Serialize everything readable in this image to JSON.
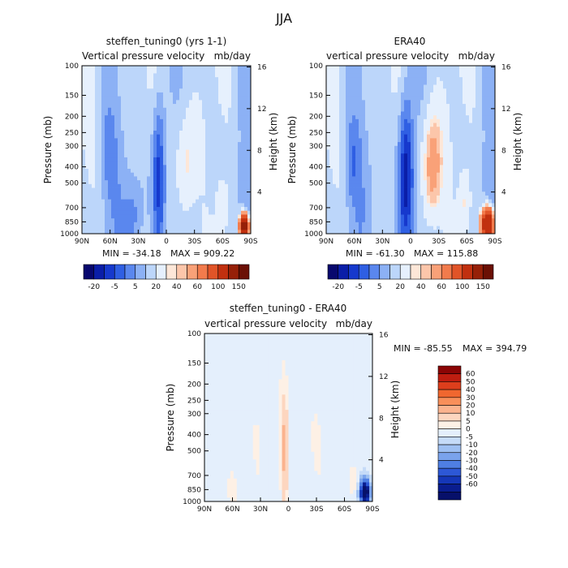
{
  "page_title": "JJA",
  "chart_data": [
    {
      "type": "heatmap",
      "title": "steffen_tuning0 (yrs 1-1)",
      "subtitle_left": "Vertical pressure velocity",
      "subtitle_right": "mb/day",
      "ylabel": "Pressure (mb)",
      "ylabel_right": "Height (km)",
      "x_ticks": [
        "90N",
        "60N",
        "30N",
        "0",
        "30S",
        "60S",
        "90S"
      ],
      "x_range": [
        90,
        -90
      ],
      "y_ticks": [
        100,
        150,
        200,
        250,
        300,
        400,
        500,
        700,
        850,
        1000
      ],
      "y_range": [
        1000,
        100
      ],
      "y_scale": "log",
      "height_ticks": [
        4,
        8,
        12,
        16
      ],
      "min_label": "MIN = -34.18",
      "max_label": "MAX = 909.22",
      "colorbar": {
        "orientation": "horizontal",
        "tick_labels": [
          "-20",
          "-5",
          "5",
          "20",
          "40",
          "60",
          "100",
          "150"
        ],
        "colors": [
          "#08086e",
          "#0a1ea8",
          "#1639cd",
          "#2f5fe3",
          "#5a87ee",
          "#8cb1f5",
          "#bcd6fa",
          "#e6f0fd",
          "#fde7d8",
          "#fcc6aa",
          "#f9a178",
          "#f27b4c",
          "#e15428",
          "#c1300f",
          "#962008",
          "#6b1005"
        ]
      },
      "features": [
        {
          "lat": 62,
          "p": 300,
          "w": 8,
          "h": 0.55,
          "v": -4,
          "note": "dark column"
        },
        {
          "lat": 35,
          "p": 800,
          "w": 10,
          "h": 0.5,
          "v": -6
        },
        {
          "lat": 8,
          "p": 450,
          "w": 7,
          "h": 1.1,
          "v": -14
        },
        {
          "lat": -20,
          "p": 420,
          "w": 12,
          "h": 0.9,
          "v": 10
        },
        {
          "lat": -60,
          "p": 700,
          "w": 7,
          "h": 0.4,
          "v": 6
        },
        {
          "lat": -83,
          "p": 900,
          "w": 4,
          "h": 0.14,
          "v": 90
        }
      ]
    },
    {
      "type": "heatmap",
      "title": "ERA40",
      "subtitle_left": "vertical pressure velocity",
      "subtitle_right": "mb/day",
      "ylabel": "Pressure (mb)",
      "ylabel_right": "Height (km)",
      "x_ticks": [
        "90N",
        "60N",
        "30N",
        "0",
        "30S",
        "60S",
        "90S"
      ],
      "x_range": [
        90,
        -90
      ],
      "y_ticks": [
        100,
        150,
        200,
        250,
        300,
        400,
        500,
        700,
        850,
        1000
      ],
      "y_range": [
        1000,
        100
      ],
      "y_scale": "log",
      "height_ticks": [
        4,
        8,
        12,
        16
      ],
      "min_label": "MIN = -61.30",
      "max_label": "MAX = 115.88",
      "colorbar": {
        "orientation": "horizontal",
        "tick_labels": [
          "-20",
          "-5",
          "5",
          "20",
          "40",
          "60",
          "100",
          "150"
        ],
        "colors": [
          "#08086e",
          "#0a1ea8",
          "#1639cd",
          "#2f5fe3",
          "#5a87ee",
          "#8cb1f5",
          "#bcd6fa",
          "#e6f0fd",
          "#fde7d8",
          "#fcc6aa",
          "#f9a178",
          "#f27b4c",
          "#e15428",
          "#c1300f",
          "#962008",
          "#6b1005"
        ]
      },
      "features": [
        {
          "lat": 62,
          "p": 350,
          "w": 8,
          "h": 0.55,
          "v": -5
        },
        {
          "lat": 5,
          "p": 450,
          "w": 8,
          "h": 1.1,
          "v": -18
        },
        {
          "lat": -22,
          "p": 420,
          "w": 12,
          "h": 0.9,
          "v": 14
        },
        {
          "lat": -58,
          "p": 650,
          "w": 7,
          "h": 0.45,
          "v": 6
        },
        {
          "lat": -82,
          "p": 880,
          "w": 6,
          "h": 0.2,
          "v": 60
        }
      ]
    },
    {
      "type": "heatmap",
      "title": "steffen_tuning0 - ERA40",
      "subtitle_left": "vertical pressure velocity",
      "subtitle_right": "mb/day",
      "ylabel": "Pressure (mb)",
      "ylabel_right": "Height (km)",
      "x_ticks": [
        "90N",
        "60N",
        "30N",
        "0",
        "30S",
        "60S",
        "90S"
      ],
      "x_range": [
        90,
        -90
      ],
      "y_ticks": [
        100,
        150,
        200,
        250,
        300,
        400,
        500,
        700,
        850,
        1000
      ],
      "y_range": [
        1000,
        100
      ],
      "y_scale": "log",
      "height_ticks": [
        4,
        8,
        12,
        16
      ],
      "min_label": "MIN = -85.55",
      "max_label": "MAX = 394.79",
      "colorbar": {
        "orientation": "vertical",
        "tick_labels": [
          "60",
          "50",
          "40",
          "30",
          "20",
          "10",
          "5",
          "0",
          "-5",
          "-10",
          "-20",
          "-30",
          "-40",
          "-50",
          "-60"
        ],
        "colors": [
          "#8b0505",
          "#be1d10",
          "#dd3e1c",
          "#f0672f",
          "#f88f5a",
          "#fbb38e",
          "#fdd6bf",
          "#fdf0e5",
          "#e4effc",
          "#c5dbf8",
          "#9ec0f2",
          "#7aa3ec",
          "#4f7fe3",
          "#2d58d6",
          "#1537b8",
          "#0a1d8f",
          "#07106a"
        ]
      },
      "features": [
        {
          "lat": 4,
          "p": 500,
          "w": 4,
          "h": 0.9,
          "v": 22
        },
        {
          "lat": 35,
          "p": 500,
          "w": 8,
          "h": 0.8,
          "v": 5
        },
        {
          "lat": -28,
          "p": 450,
          "w": 9,
          "h": 0.8,
          "v": 4
        },
        {
          "lat": -70,
          "p": 750,
          "w": 6,
          "h": 0.3,
          "v": 8
        },
        {
          "lat": -82,
          "p": 880,
          "w": 6,
          "h": 0.18,
          "v": -70
        },
        {
          "lat": 60,
          "p": 850,
          "w": 4,
          "h": 0.2,
          "v": 10
        }
      ]
    }
  ]
}
